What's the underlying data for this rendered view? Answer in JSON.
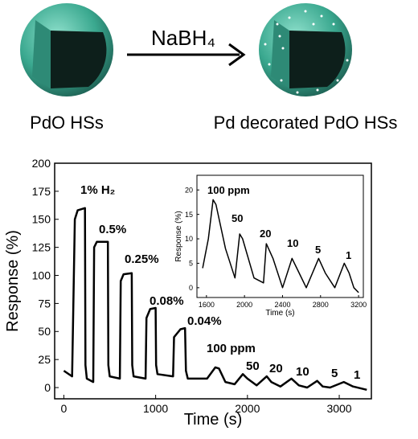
{
  "schematic": {
    "reagent": "NaBH₄",
    "left_label": "PdO HSs",
    "right_label": "Pd decorated PdO HSs"
  },
  "chart_data": [
    {
      "type": "line",
      "x_label": "Time (s)",
      "y_label": "Response (%)",
      "x": [
        0,
        90,
        120,
        150,
        230,
        235,
        250,
        320,
        330,
        360,
        480,
        485,
        500,
        610,
        620,
        650,
        740,
        745,
        760,
        890,
        900,
        940,
        1000,
        1005,
        1020,
        1190,
        1200,
        1270,
        1320,
        1330,
        1350,
        1560,
        1650,
        1690,
        1760,
        1860,
        1950,
        2000,
        2100,
        2210,
        2260,
        2360,
        2480,
        2560,
        2650,
        2760,
        2820,
        2900,
        3050,
        3150,
        3300
      ],
      "values": [
        15,
        10,
        150,
        158,
        160,
        20,
        8,
        5,
        125,
        130,
        130,
        20,
        10,
        8,
        95,
        101,
        102,
        20,
        10,
        8,
        62,
        70,
        71,
        20,
        12,
        10,
        45,
        52,
        53,
        15,
        8,
        8,
        18,
        17,
        5,
        3,
        12,
        8,
        2,
        10,
        5,
        1,
        8,
        2,
        0,
        6,
        1,
        0,
        5,
        1,
        -2
      ],
      "color": "#000000",
      "xlim": [
        -100,
        3350
      ],
      "ylim": [
        -10,
        200
      ],
      "xticks": [
        0,
        1000,
        2000,
        3000
      ],
      "yticks": [
        0,
        25,
        50,
        75,
        100,
        125,
        150,
        175,
        200
      ],
      "annotations": [
        "1% H₂",
        "0.5%",
        "0.25%",
        "0.08%",
        "0.04%",
        "100 ppm",
        "50",
        "20",
        "10",
        "5",
        "1"
      ]
    },
    {
      "type": "line",
      "x_label": "Time (s)",
      "y_label": "Response (%)",
      "x": [
        1560,
        1620,
        1670,
        1700,
        1800,
        1900,
        1950,
        1980,
        2100,
        2200,
        2230,
        2300,
        2400,
        2500,
        2550,
        2650,
        2780,
        2850,
        2950,
        3050,
        3100,
        3150,
        3200
      ],
      "values": [
        4,
        10,
        18,
        17,
        8,
        2,
        11,
        10,
        2,
        1,
        9,
        6,
        0,
        6,
        4,
        0,
        6,
        3,
        0,
        5,
        3,
        0,
        -1
      ],
      "color": "#000000",
      "xlim": [
        1500,
        3250
      ],
      "ylim": [
        -2,
        23
      ],
      "xticks": [
        1600,
        2000,
        2400,
        2800,
        3200
      ],
      "yticks": [
        0,
        5,
        10,
        15,
        20
      ],
      "annotations": [
        "100 ppm",
        "50",
        "20",
        "10",
        "5",
        "1"
      ]
    }
  ]
}
